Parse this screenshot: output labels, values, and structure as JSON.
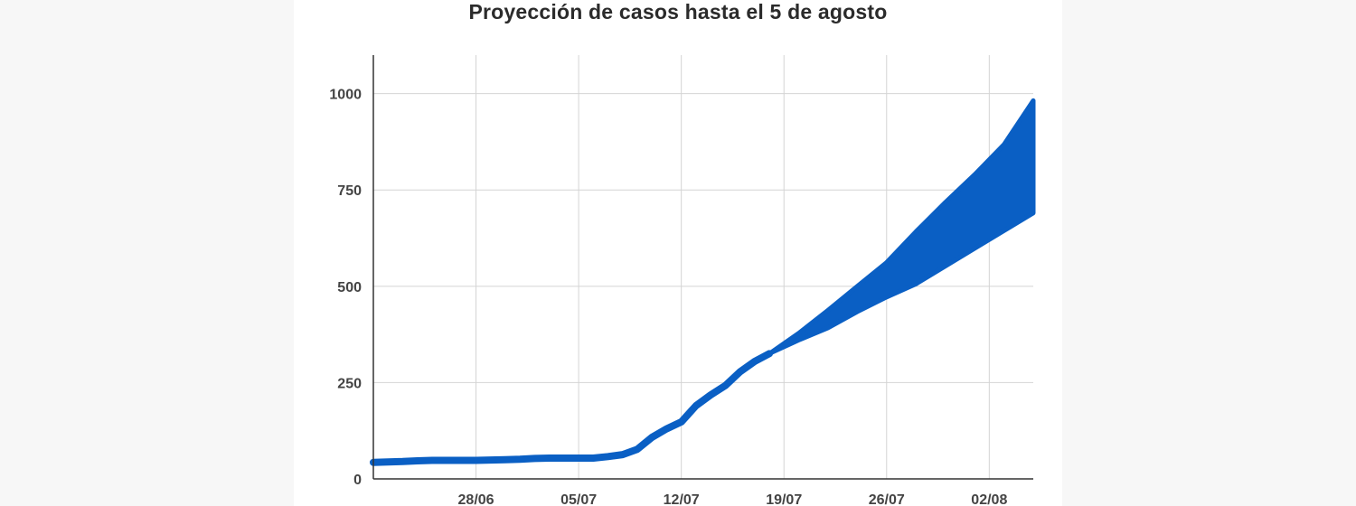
{
  "chart_data": {
    "type": "area",
    "title": "Proyección de casos hasta el 5 de agosto",
    "xlabel": "",
    "ylabel": "",
    "ylim": [
      0,
      1100
    ],
    "yticks": [
      0,
      250,
      500,
      750,
      1000
    ],
    "xlim": [
      "2020-06-21",
      "2020-08-05"
    ],
    "xticks": [
      {
        "date": "2020-06-28",
        "label": "28/06"
      },
      {
        "date": "2020-07-05",
        "label": "05/07"
      },
      {
        "date": "2020-07-12",
        "label": "12/07"
      },
      {
        "date": "2020-07-19",
        "label": "19/07"
      },
      {
        "date": "2020-07-26",
        "label": "26/07"
      },
      {
        "date": "2020-08-02",
        "label": "02/08"
      }
    ],
    "grid": true,
    "legend": "none",
    "color": "#0a5fc4",
    "observed": {
      "x": [
        "2020-06-21",
        "2020-06-22",
        "2020-06-23",
        "2020-06-24",
        "2020-06-25",
        "2020-06-26",
        "2020-06-27",
        "2020-06-28",
        "2020-06-29",
        "2020-06-30",
        "2020-07-01",
        "2020-07-02",
        "2020-07-03",
        "2020-07-04",
        "2020-07-05",
        "2020-07-06",
        "2020-07-07",
        "2020-07-08",
        "2020-07-09",
        "2020-07-10",
        "2020-07-11",
        "2020-07-12",
        "2020-07-13",
        "2020-07-14",
        "2020-07-15",
        "2020-07-16",
        "2020-07-17",
        "2020-07-18"
      ],
      "y": [
        43,
        44,
        45,
        47,
        48,
        48,
        48,
        48,
        49,
        50,
        51,
        53,
        54,
        54,
        54,
        54,
        58,
        63,
        77,
        108,
        130,
        148,
        190,
        218,
        242,
        278,
        305,
        325
      ]
    },
    "projection": {
      "x": [
        "2020-07-18",
        "2020-07-20",
        "2020-07-22",
        "2020-07-24",
        "2020-07-26",
        "2020-07-28",
        "2020-07-30",
        "2020-08-01",
        "2020-08-03",
        "2020-08-05"
      ],
      "upper": [
        325,
        378,
        438,
        500,
        562,
        642,
        718,
        790,
        868,
        982
      ],
      "lower": [
        325,
        360,
        392,
        434,
        472,
        506,
        552,
        598,
        644,
        690
      ]
    }
  }
}
